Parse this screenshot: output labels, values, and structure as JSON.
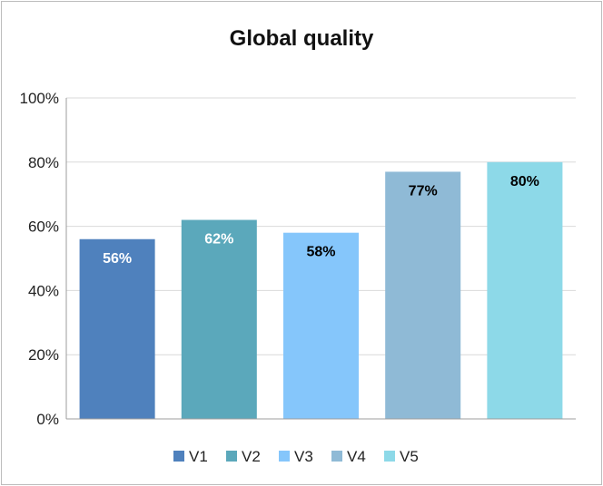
{
  "chart_data": {
    "type": "bar",
    "title": "Global quality",
    "xlabel": "",
    "ylabel": "",
    "ylim": [
      0,
      100
    ],
    "y_ticks": [
      "0%",
      "20%",
      "40%",
      "60%",
      "80%",
      "100%"
    ],
    "y_tick_values": [
      0,
      20,
      40,
      60,
      80,
      100
    ],
    "grid": true,
    "legend_position": "bottom",
    "series": [
      {
        "name": "V1",
        "value": 56,
        "label": "56%",
        "color": "#4f81bd",
        "label_color": "#ffffff"
      },
      {
        "name": "V2",
        "value": 62,
        "label": "62%",
        "color": "#5ba8bb",
        "label_color": "#ffffff"
      },
      {
        "name": "V3",
        "value": 58,
        "label": "58%",
        "color": "#85c6fb",
        "label_color": "#000000"
      },
      {
        "name": "V4",
        "value": 77,
        "label": "77%",
        "color": "#8fbad6",
        "label_color": "#000000"
      },
      {
        "name": "V5",
        "value": 80,
        "label": "80%",
        "color": "#8dd9e8",
        "label_color": "#000000"
      }
    ],
    "colors": {
      "gridline": "#d9d9d9",
      "axis": "#9c9c9c",
      "border": "#bcbcbc"
    }
  }
}
